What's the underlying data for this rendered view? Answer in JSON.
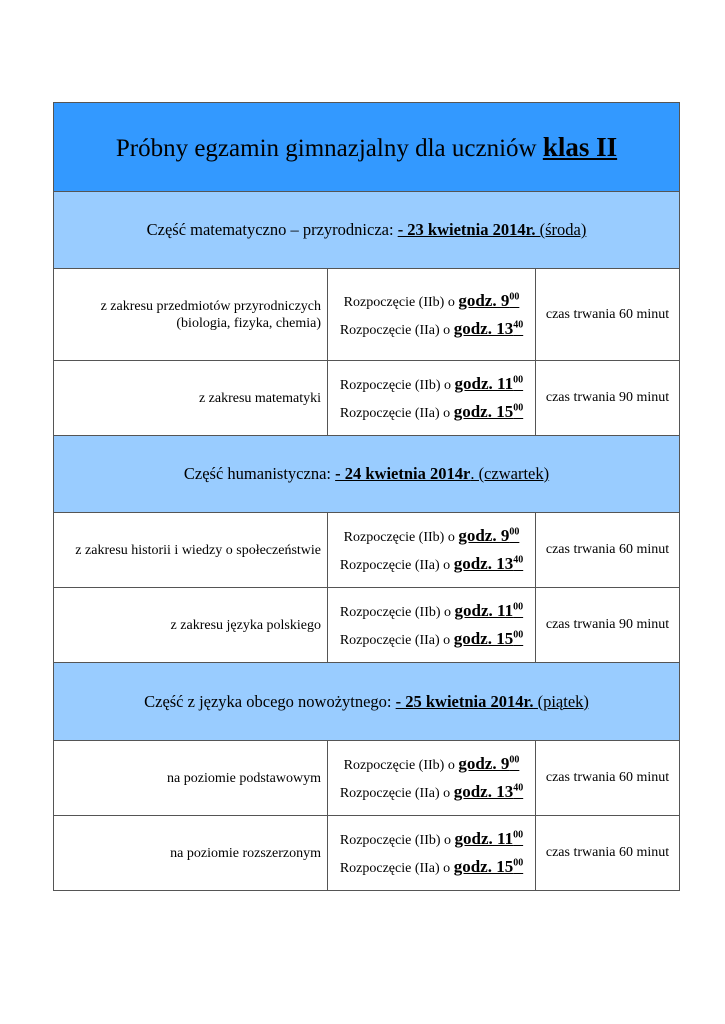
{
  "title": {
    "text": "Próbny egzamin gimnazjalny dla uczniów ",
    "emph": "klas II"
  },
  "colors": {
    "header": "#3399ff",
    "section": "#99ccff"
  },
  "sections": [
    {
      "label": "Część  matematyczno – przyrodnicza: ",
      "date": "- 23 kwietnia 2014r.",
      "day": " (środa)",
      "rows": [
        {
          "subject_lines": [
            "z zakresu przedmiotów przyrodniczych",
            "(biologia, fizyka, chemia)"
          ],
          "start1": "Rozpoczęcie (IIb) o ",
          "time1": "godz. 9",
          "sup1": "00",
          "start2": "Rozpoczęcie (IIa) o ",
          "time2": "godz. 13",
          "sup2": "40",
          "duration": "czas trwania 60 minut"
        },
        {
          "subject_lines": [
            "z zakresu matematyki"
          ],
          "start1": "Rozpoczęcie (IIb) o ",
          "time1": "godz. 11",
          "sup1": "00",
          "start2": "Rozpoczęcie (IIa) o ",
          "time2": "godz. 15",
          "sup2": "00",
          "duration": "czas trwania 90 minut"
        }
      ]
    },
    {
      "label": "Część humanistyczna: ",
      "date": "- 24 kwietnia 2014r",
      "day": ". (czwartek)",
      "rows": [
        {
          "subject_lines": [
            "z zakresu historii i wiedzy o społeczeństwie"
          ],
          "start1": "Rozpoczęcie (IIb) o ",
          "time1": "godz. 9",
          "sup1": "00",
          "start2": "Rozpoczęcie (IIa) o ",
          "time2": "godz. 13",
          "sup2": "40",
          "duration": "czas trwania 60 minut"
        },
        {
          "subject_lines": [
            "z zakresu języka polskiego"
          ],
          "start1": "Rozpoczęcie (IIb)  o ",
          "time1": "godz. 11",
          "sup1": "00",
          "start2": "Rozpoczęcie (IIa) o ",
          "time2": "godz. 15",
          "sup2": "00",
          "duration": "czas trwania 90 minut"
        }
      ]
    },
    {
      "label": "Część z języka obcego nowożytnego: ",
      "date": "- 25 kwietnia 2014r.",
      "day": " (piątek)",
      "rows": [
        {
          "subject_lines": [
            "na poziomie podstawowym"
          ],
          "start1": "Rozpoczęcie (IIb) o ",
          "time1": "godz. 9",
          "sup1": "00",
          "start2": "Rozpoczęcie (IIa) o ",
          "time2": "godz. 13",
          "sup2": "40",
          "duration": "czas trwania 60 minut"
        },
        {
          "subject_lines": [
            "na poziomie rozszerzonym"
          ],
          "start1": "Rozpoczęcie (IIb) o ",
          "time1": "godz. 11",
          "sup1": "00",
          "start2": "Rozpoczęcie (IIa) o ",
          "time2": "godz. 15",
          "sup2": "00",
          "duration": "czas trwania 60 minut"
        }
      ]
    }
  ]
}
